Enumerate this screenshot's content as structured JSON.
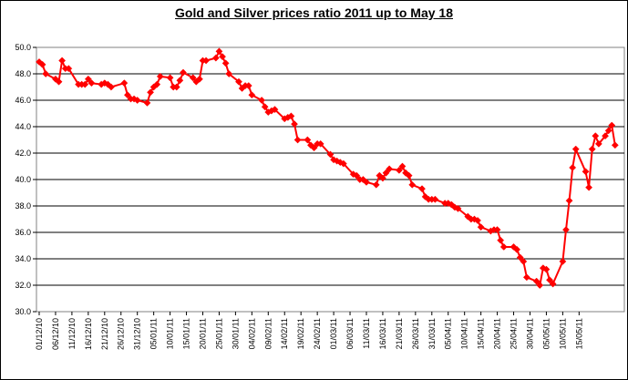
{
  "chart_data": {
    "type": "line",
    "title": "Gold and Silver prices ratio 2011 up to May 18",
    "xlabel": "",
    "ylabel": "",
    "ylim": [
      30.0,
      50.0
    ],
    "yticks": [
      "30.0",
      "32.0",
      "34.0",
      "36.0",
      "38.0",
      "40.0",
      "42.0",
      "44.0",
      "46.0",
      "48.0",
      "50.0"
    ],
    "grid": true,
    "legend": "none",
    "x_tick_labels": [
      "01/12/10",
      "06/12/10",
      "11/12/10",
      "16/12/10",
      "21/12/10",
      "26/12/10",
      "31/12/10",
      "05/01/11",
      "10/01/11",
      "15/01/11",
      "20/01/11",
      "25/01/11",
      "30/01/11",
      "04/02/11",
      "09/02/11",
      "14/02/11",
      "19/02/11",
      "24/02/11",
      "01/03/11",
      "06/03/11",
      "11/03/11",
      "16/03/11",
      "21/03/11",
      "26/03/11",
      "31/03/11",
      "05/04/11",
      "10/04/11",
      "15/04/11",
      "20/04/11",
      "25/04/11",
      "30/04/11",
      "05/05/11",
      "10/05/11",
      "15/05/11"
    ],
    "series": [
      {
        "color": "#ff0000",
        "marker": "diamond",
        "points": [
          [
            "2010-12-01",
            48.9
          ],
          [
            "2010-12-02",
            48.7
          ],
          [
            "2010-12-03",
            48.0
          ],
          [
            "2010-12-06",
            47.6
          ],
          [
            "2010-12-07",
            47.4
          ],
          [
            "2010-12-08",
            49.0
          ],
          [
            "2010-12-09",
            48.4
          ],
          [
            "2010-12-10",
            48.4
          ],
          [
            "2010-12-13",
            47.2
          ],
          [
            "2010-12-14",
            47.2
          ],
          [
            "2010-12-15",
            47.2
          ],
          [
            "2010-12-16",
            47.6
          ],
          [
            "2010-12-17",
            47.3
          ],
          [
            "2010-12-20",
            47.2
          ],
          [
            "2010-12-21",
            47.3
          ],
          [
            "2010-12-22",
            47.2
          ],
          [
            "2010-12-23",
            47.0
          ],
          [
            "2010-12-27",
            47.3
          ],
          [
            "2010-12-28",
            46.4
          ],
          [
            "2010-12-29",
            46.1
          ],
          [
            "2010-12-30",
            46.1
          ],
          [
            "2010-12-31",
            46.0
          ],
          [
            "2011-01-03",
            45.8
          ],
          [
            "2011-01-04",
            46.6
          ],
          [
            "2011-01-05",
            47.0
          ],
          [
            "2011-01-06",
            47.2
          ],
          [
            "2011-01-07",
            47.8
          ],
          [
            "2011-01-10",
            47.7
          ],
          [
            "2011-01-11",
            47.0
          ],
          [
            "2011-01-12",
            47.0
          ],
          [
            "2011-01-13",
            47.5
          ],
          [
            "2011-01-14",
            48.1
          ],
          [
            "2011-01-17",
            47.7
          ],
          [
            "2011-01-18",
            47.4
          ],
          [
            "2011-01-19",
            47.6
          ],
          [
            "2011-01-20",
            49.0
          ],
          [
            "2011-01-21",
            49.0
          ],
          [
            "2011-01-24",
            49.2
          ],
          [
            "2011-01-25",
            49.7
          ],
          [
            "2011-01-26",
            49.3
          ],
          [
            "2011-01-27",
            48.8
          ],
          [
            "2011-01-28",
            48.0
          ],
          [
            "2011-01-31",
            47.4
          ],
          [
            "2011-02-01",
            46.9
          ],
          [
            "2011-02-02",
            47.1
          ],
          [
            "2011-02-03",
            47.1
          ],
          [
            "2011-02-04",
            46.4
          ],
          [
            "2011-02-07",
            46.0
          ],
          [
            "2011-02-08",
            45.5
          ],
          [
            "2011-02-09",
            45.1
          ],
          [
            "2011-02-10",
            45.2
          ],
          [
            "2011-02-11",
            45.3
          ],
          [
            "2011-02-14",
            44.6
          ],
          [
            "2011-02-15",
            44.7
          ],
          [
            "2011-02-16",
            44.8
          ],
          [
            "2011-02-17",
            44.2
          ],
          [
            "2011-02-18",
            43.0
          ],
          [
            "2011-02-21",
            43.0
          ],
          [
            "2011-02-22",
            42.6
          ],
          [
            "2011-02-23",
            42.4
          ],
          [
            "2011-02-24",
            42.7
          ],
          [
            "2011-02-25",
            42.7
          ],
          [
            "2011-02-28",
            41.9
          ],
          [
            "2011-03-01",
            41.5
          ],
          [
            "2011-03-02",
            41.4
          ],
          [
            "2011-03-03",
            41.3
          ],
          [
            "2011-03-04",
            41.2
          ],
          [
            "2011-03-07",
            40.4
          ],
          [
            "2011-03-08",
            40.3
          ],
          [
            "2011-03-09",
            40.0
          ],
          [
            "2011-03-10",
            40.0
          ],
          [
            "2011-03-11",
            39.8
          ],
          [
            "2011-03-14",
            39.6
          ],
          [
            "2011-03-15",
            40.3
          ],
          [
            "2011-03-16",
            40.1
          ],
          [
            "2011-03-17",
            40.5
          ],
          [
            "2011-03-18",
            40.8
          ],
          [
            "2011-03-21",
            40.7
          ],
          [
            "2011-03-22",
            41.0
          ],
          [
            "2011-03-23",
            40.5
          ],
          [
            "2011-03-24",
            40.3
          ],
          [
            "2011-03-25",
            39.6
          ],
          [
            "2011-03-28",
            39.3
          ],
          [
            "2011-03-29",
            38.7
          ],
          [
            "2011-03-30",
            38.5
          ],
          [
            "2011-03-31",
            38.5
          ],
          [
            "2011-04-01",
            38.5
          ],
          [
            "2011-04-04",
            38.2
          ],
          [
            "2011-04-05",
            38.2
          ],
          [
            "2011-04-06",
            38.1
          ],
          [
            "2011-04-07",
            37.9
          ],
          [
            "2011-04-08",
            37.8
          ],
          [
            "2011-04-11",
            37.2
          ],
          [
            "2011-04-12",
            37.0
          ],
          [
            "2011-04-13",
            37.0
          ],
          [
            "2011-04-14",
            36.9
          ],
          [
            "2011-04-15",
            36.4
          ],
          [
            "2011-04-18",
            36.1
          ],
          [
            "2011-04-19",
            36.2
          ],
          [
            "2011-04-20",
            36.2
          ],
          [
            "2011-04-21",
            35.4
          ],
          [
            "2011-04-22",
            34.9
          ],
          [
            "2011-04-25",
            34.9
          ],
          [
            "2011-04-26",
            34.7
          ],
          [
            "2011-04-27",
            34.1
          ],
          [
            "2011-04-28",
            33.8
          ],
          [
            "2011-04-29",
            32.6
          ],
          [
            "2011-05-02",
            32.3
          ],
          [
            "2011-05-03",
            32.0
          ],
          [
            "2011-05-04",
            33.3
          ],
          [
            "2011-05-05",
            33.2
          ],
          [
            "2011-05-06",
            32.4
          ],
          [
            "2011-05-07",
            32.1
          ],
          [
            "2011-05-10",
            33.8
          ],
          [
            "2011-05-11",
            36.2
          ],
          [
            "2011-05-12",
            38.4
          ],
          [
            "2011-05-13",
            40.9
          ],
          [
            "2011-05-14",
            42.3
          ],
          [
            "2011-05-17",
            40.6
          ],
          [
            "2011-05-18",
            39.4
          ],
          [
            "2011-05-19",
            42.3
          ],
          [
            "2011-05-20",
            43.3
          ],
          [
            "2011-05-21",
            42.7
          ],
          [
            "2011-05-23",
            43.3
          ],
          [
            "2011-05-24",
            43.7
          ],
          [
            "2011-05-25",
            44.1
          ],
          [
            "2011-05-26",
            42.6
          ]
        ]
      }
    ]
  }
}
